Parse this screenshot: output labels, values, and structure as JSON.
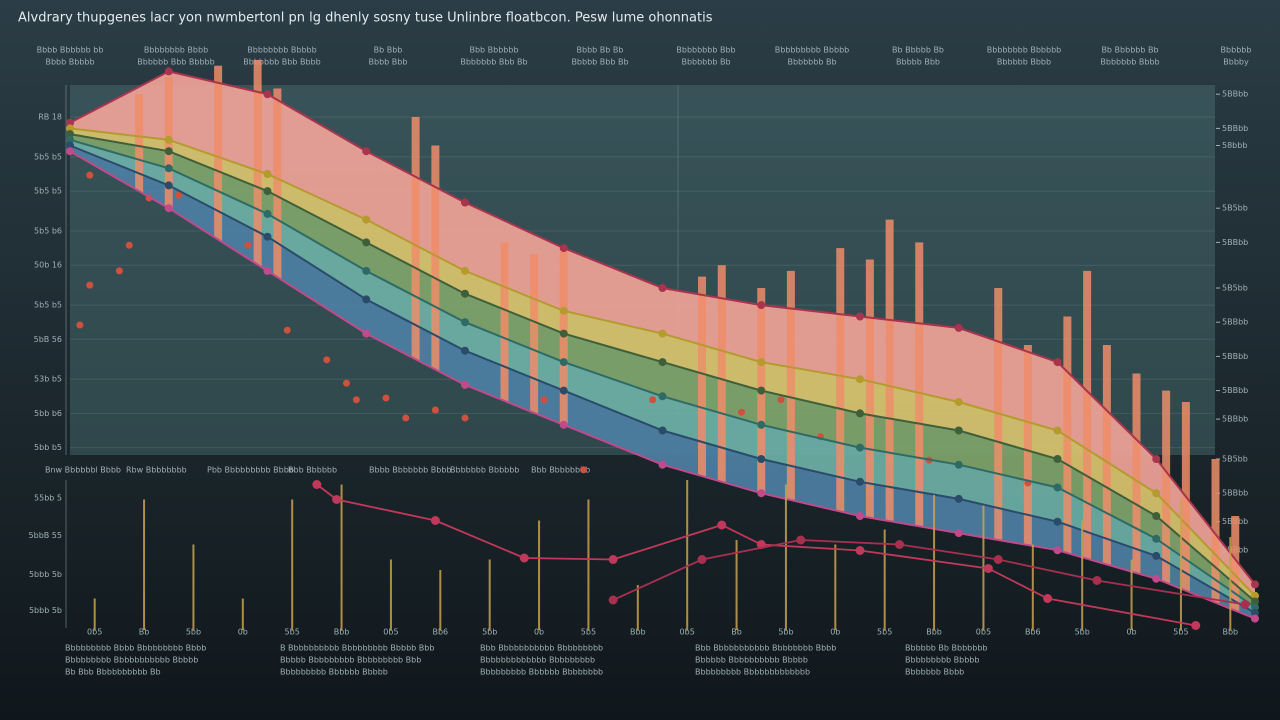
{
  "chart_data": [
    {
      "type": "area",
      "title": "Alvdrary thupgenes lacr yon nwmbertonl pn lg dhenly sosny tuse Unlinbre floatbcon. Pesw lume ohonnatis",
      "annotations": [
        "Bbbb Bbbbbb bb",
        "Bbbbbbbb Bbbb",
        "Bbbbbbbb Bbbbb",
        "Bb Bbb",
        "Bbb Bbbbbb",
        "Bbbb Bb Bb",
        "Bbbbbbbb Bbb",
        "Bbbbbbbbb Bbbbb",
        "Bb Bbbbb Bb",
        "Bbbbbbbb Bbbbbb",
        "Bb Bbbbbb Bb",
        "Bbbbbb",
        "Bbbb Bbbbb",
        "Bbbbbb Bbb Bbbbb",
        "Bbbbbbb Bbb Bbbb",
        "Bbbb Bbb",
        "Bbbbbbb Bbb Bb",
        "Bbbbb Bbb Bb",
        "Bbbbbbb Bb",
        "Bbbbbbb Bb",
        "Bbbbb Bbb",
        "Bbbbbb Bbbb",
        "Bbbbbbb Bbbb",
        "Bbbby"
      ],
      "x": [
        0,
        1,
        2,
        3,
        4,
        5,
        6,
        7,
        8,
        9,
        10,
        11,
        12
      ],
      "xlim": [
        0,
        12
      ],
      "ylim": [
        0,
        100
      ],
      "grid": true,
      "yticks": [
        {
          "value": 90,
          "label": "RB 18"
        },
        {
          "value": 83,
          "label": "5b5 b5"
        },
        {
          "value": 77,
          "label": "5b5 b5"
        },
        {
          "value": 70,
          "label": "5b5 b6"
        },
        {
          "value": 64,
          "label": "50b 16"
        },
        {
          "value": 57,
          "label": "5b5 b5"
        },
        {
          "value": 51,
          "label": "5bB 56"
        },
        {
          "value": 44,
          "label": "53b b5"
        },
        {
          "value": 38,
          "label": "5bb b6"
        },
        {
          "value": 32,
          "label": "5bb b5"
        }
      ],
      "y2lim": [
        0,
        100
      ],
      "y2ticks": [
        {
          "value": 94,
          "label": "5BBbb"
        },
        {
          "value": 88,
          "label": "5BBbb"
        },
        {
          "value": 85,
          "label": "58bbb"
        },
        {
          "value": 74,
          "label": "5B5bb"
        },
        {
          "value": 68,
          "label": "5BBbb"
        },
        {
          "value": 60,
          "label": "5B5bb"
        },
        {
          "value": 54,
          "label": "5BBbb"
        },
        {
          "value": 48,
          "label": "5BBbb"
        },
        {
          "value": 42,
          "label": "5BBbb"
        },
        {
          "value": 37,
          "label": "5BBbb"
        },
        {
          "value": 30,
          "label": "5B5bb"
        },
        {
          "value": 24,
          "label": "5BBbb"
        },
        {
          "value": 19,
          "label": "5BBbb"
        },
        {
          "value": 14,
          "label": "5BBbb"
        }
      ],
      "series": [
        {
          "color": "#f0a398",
          "line_color": "#a8344e",
          "values": [
            89,
            98,
            94,
            84,
            75,
            67,
            60,
            57,
            55,
            53,
            47,
            30,
            8
          ]
        },
        {
          "color": "#d9c46e",
          "line_color": "#b59a2e",
          "values": [
            88,
            86,
            80,
            72,
            63,
            56,
            52,
            47,
            44,
            40,
            35,
            24,
            6
          ]
        },
        {
          "color": "#7fa46a",
          "line_color": "#3f5f3a",
          "values": [
            87,
            84,
            77,
            68,
            59,
            52,
            47,
            42,
            38,
            35,
            30,
            20,
            5
          ]
        },
        {
          "color": "#6db0a6",
          "line_color": "#2f6b66",
          "values": [
            86,
            81,
            73,
            63,
            54,
            47,
            41,
            36,
            32,
            29,
            25,
            16,
            4
          ]
        },
        {
          "color": "#4d7fa3",
          "line_color": "#2a4c6a",
          "values": [
            85,
            78,
            69,
            58,
            49,
            42,
            35,
            30,
            26,
            23,
            19,
            13,
            3
          ]
        },
        {
          "color": "#8d5a9a",
          "line_color": "#c04a8c",
          "values": [
            84,
            74,
            63,
            52,
            43,
            36,
            29,
            24,
            20,
            17,
            14,
            9,
            2
          ]
        }
      ]
    },
    {
      "type": "bar",
      "color": "#ef8d68",
      "xlim": [
        0,
        12
      ],
      "ylim": [
        0,
        100
      ],
      "x": [
        0.7,
        1.0,
        1.5,
        1.9,
        2.1,
        3.5,
        3.7,
        4.4,
        4.7,
        5.0,
        6.4,
        6.6,
        7.0,
        7.3,
        7.8,
        8.1,
        8.3,
        8.6,
        9.4,
        9.7,
        10.1,
        10.3,
        10.5,
        10.8,
        11.1,
        11.3,
        11.6,
        11.8
      ],
      "values": [
        94,
        97,
        99,
        100,
        95,
        90,
        85,
        68,
        66,
        67,
        62,
        64,
        60,
        63,
        67,
        65,
        72,
        68,
        60,
        50,
        55,
        63,
        50,
        45,
        42,
        40,
        30,
        20
      ]
    },
    {
      "type": "scatter",
      "color": "#d0503e",
      "xlim": [
        0,
        12
      ],
      "ylim": [
        0,
        100
      ],
      "x": [
        0.2,
        0.1,
        0.2,
        0.5,
        0.6,
        0.8,
        1.1,
        1.8,
        2.2,
        2.6,
        2.8,
        2.9,
        3.2,
        3.4,
        3.7,
        4.0,
        4.8,
        5.2,
        5.9,
        6.8,
        7.2,
        7.6,
        8.7,
        9.7
      ],
      "values": [
        79.8,
        53.5,
        60.5,
        63,
        67.5,
        75.8,
        76.3,
        67.5,
        52.6,
        47.4,
        43.3,
        40.4,
        40.7,
        37.2,
        38.6,
        37.2,
        40.4,
        28.1,
        40.4,
        38.2,
        40.4,
        33.9,
        29.8,
        25.8
      ]
    },
    {
      "type": "bar",
      "color": "#c9a24e",
      "ylim": [
        0,
        100
      ],
      "categories": [
        "0b5",
        "Bb",
        "5bb",
        "0b",
        "5b5",
        "Bbb",
        "0b5",
        "Bb6",
        "5bb",
        "0b",
        "5b5",
        "Bbb",
        "0b5",
        "Bb",
        "5bb",
        "0b",
        "5b5",
        "Bbb",
        "0b5",
        "Bb6",
        "5bb",
        "0b",
        "5b5",
        "Bbb"
      ],
      "values": [
        21,
        87,
        57,
        21,
        87,
        97,
        47,
        40,
        47,
        73,
        87,
        30,
        100,
        60,
        97,
        57,
        67,
        90,
        83,
        57,
        73,
        47,
        87,
        62
      ]
    },
    {
      "type": "line",
      "xlim": [
        0,
        12
      ],
      "ylim": [
        0,
        100
      ],
      "yticks": [
        {
          "value": 88,
          "label": "55bb 5"
        },
        {
          "value": 63,
          "label": "5bbB 55"
        },
        {
          "value": 37,
          "label": "5bbb 5b"
        },
        {
          "value": 13,
          "label": "5bbb 5b"
        }
      ],
      "annotations": [
        "Bnw Bbbbbbl Bbbb",
        "Rbw Bbbbbbbb",
        "Pbb Bbbbbbbbb Bbbb",
        "Bbb Bbbbbb",
        "Bbbb Bbbbbbb Bbbb",
        "Bbbbbbb Bbbbbb",
        "Bbb Bbbbbbbb"
      ],
      "footnotes": [
        "Bbbbbbbbb Bbbb Bbbbbbbbb Bbbb",
        "B Bbbbbbbbbb Bbbbbbbbb Bbbbb Bbb",
        "Bbb Bbbbbbbbbbb Bbbbbbbbb",
        "Bbb Bbbbbbbbbbb Bbbbbbbb Bbbb",
        "Bbbbbb Bb Bbbbbbb",
        "Bbbbbbbbb Bbbbbbbbbbb Bbbbb",
        "Bbbbb Bbbbbbbbb Bbbbbbbbb Bbb",
        "Bbbbbbbbbbbbb Bbbbbbbbb",
        "Bbbbbb Bbbbbbbbbb Bbbbb",
        "Bbbbbbbbb Bbbbb",
        "Bb Bbb Bbbbbbbbbb Bb",
        "Bbbbbbbbb Bbbbbb Bbbbb",
        "Bbbbbbbbb Bbbbbb Bbbbbbbb",
        "Bbbbbbbbb Bbbbbbbbbbbbb",
        "Bbbbbbb Bbbb"
      ],
      "series": [
        {
          "color": "#c0395a",
          "x": [
            2.5,
            2.7,
            3.7,
            4.6,
            5.5,
            6.6,
            7.0,
            8.0,
            9.3,
            9.9,
            11.4
          ],
          "values": [
            97,
            87,
            73,
            48,
            47,
            70,
            57,
            53,
            41,
            21,
            3
          ]
        },
        {
          "color": "#a8304f",
          "x": [
            5.5,
            6.4,
            7.4,
            8.4,
            9.4,
            10.4,
            11.9
          ],
          "values": [
            20,
            47,
            60,
            57,
            47,
            33,
            17
          ]
        }
      ]
    }
  ]
}
